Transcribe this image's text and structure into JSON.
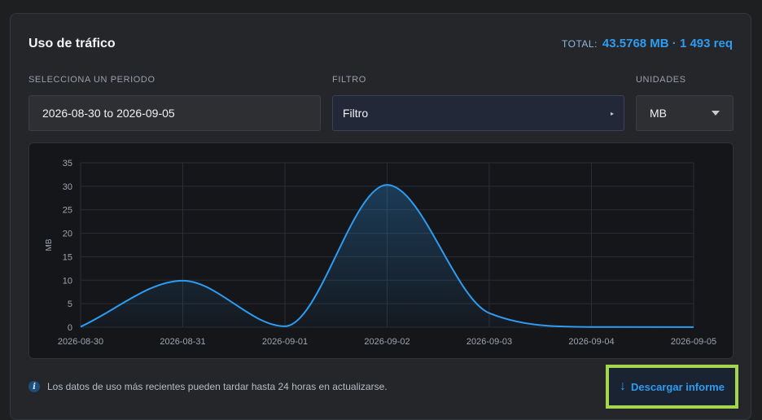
{
  "header": {
    "title": "Uso de tráfico",
    "total_label": "TOTAL:",
    "total_value": "43.5768 MB · 1 493 req"
  },
  "filters": {
    "period": {
      "label": "SELECCIONA UN PERIODO",
      "value": "2026-08-30 to 2026-09-05"
    },
    "filter": {
      "label": "FILTRO",
      "value": "Filtro"
    },
    "units": {
      "label": "UNIDADES",
      "value": "MB"
    }
  },
  "chart_data": {
    "type": "area",
    "ylabel": "MB",
    "ylim": [
      0,
      35
    ],
    "yticks": [
      0,
      5,
      10,
      15,
      20,
      25,
      30,
      35
    ],
    "categories": [
      "2026-08-30",
      "2026-08-31",
      "2026-09-01",
      "2026-09-02",
      "2026-09-03",
      "2026-09-04",
      "2026-09-05"
    ],
    "values": [
      0.1,
      9.9,
      0.2,
      30.3,
      3.0,
      0.05,
      0.02
    ],
    "line_color": "#2f9bf1",
    "grid": true
  },
  "footer": {
    "info_icon": "info-icon",
    "info_text": "Los datos de uso más recientes pueden tardar hasta 24 horas en actualizarse.",
    "download_icon": "download-arrow-icon",
    "download_label": "Descargar informe"
  },
  "colors": {
    "accent": "#2f9bf1",
    "highlight_border": "#a3d64c"
  }
}
